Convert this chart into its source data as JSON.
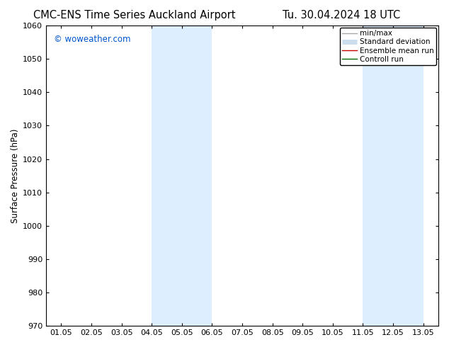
{
  "title_left": "CMC-ENS Time Series Auckland Airport",
  "title_right": "Tu. 30.04.2024 18 UTC",
  "ylabel": "Surface Pressure (hPa)",
  "xlabel": "",
  "ylim": [
    970,
    1060
  ],
  "yticks": [
    970,
    980,
    990,
    1000,
    1010,
    1020,
    1030,
    1040,
    1050,
    1060
  ],
  "xtick_labels": [
    "01.05",
    "02.05",
    "03.05",
    "04.05",
    "05.05",
    "06.05",
    "07.05",
    "08.05",
    "09.05",
    "10.05",
    "11.05",
    "12.05",
    "13.05"
  ],
  "xtick_positions": [
    0,
    1,
    2,
    3,
    4,
    5,
    6,
    7,
    8,
    9,
    10,
    11,
    12
  ],
  "xlim": [
    -0.5,
    12.5
  ],
  "shaded_regions": [
    {
      "x_start": 3.0,
      "x_end": 5.0,
      "color": "#ddeeff"
    },
    {
      "x_start": 10.0,
      "x_end": 12.0,
      "color": "#ddeeff"
    }
  ],
  "watermark_text": "© woweather.com",
  "watermark_color": "#0055cc",
  "legend_items": [
    {
      "label": "min/max",
      "color": "#aaaaaa",
      "lw": 1.0
    },
    {
      "label": "Standard deviation",
      "color": "#ccddee",
      "lw": 5.0
    },
    {
      "label": "Ensemble mean run",
      "color": "#cc0000",
      "lw": 1.0
    },
    {
      "label": "Controll run",
      "color": "#006600",
      "lw": 1.0
    }
  ],
  "bg_color": "#ffffff",
  "title_fontsize": 10.5,
  "tick_fontsize": 8,
  "ylabel_fontsize": 8.5,
  "legend_fontsize": 7.5
}
